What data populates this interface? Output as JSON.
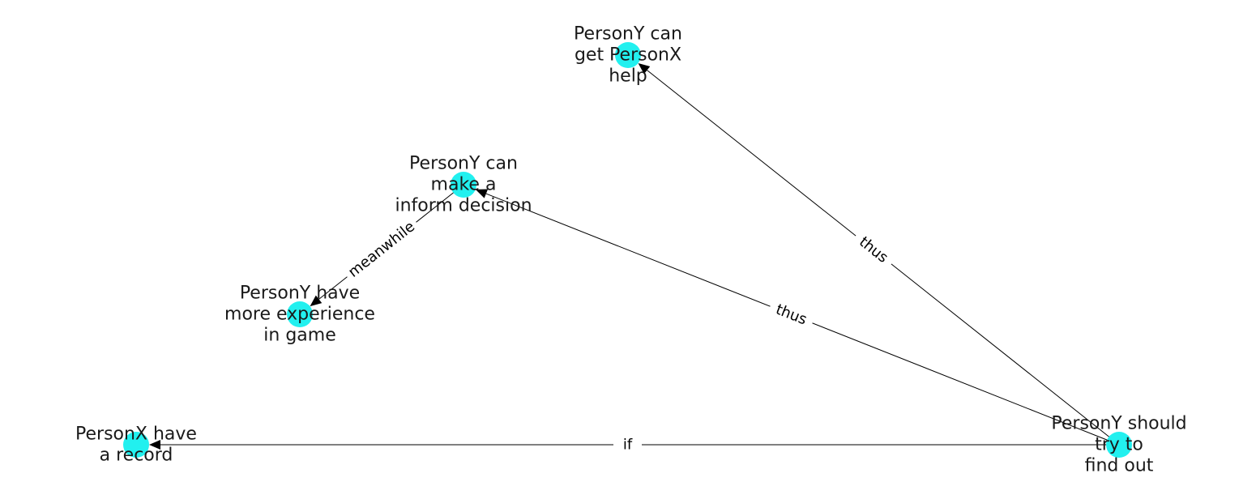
{
  "colors": {
    "node_fill": "#22f0ef",
    "edge": "#000000",
    "label_text": "#1a1a1a"
  },
  "nodes": [
    {
      "id": "n1",
      "lines": [
        "PersonY can",
        "get PersonX",
        "help"
      ]
    },
    {
      "id": "n2",
      "lines": [
        "PersonY can",
        "make a",
        "inform decision"
      ]
    },
    {
      "id": "n3",
      "lines": [
        "PersonY have",
        "more experience",
        "in game"
      ]
    },
    {
      "id": "n4",
      "lines": [
        "PersonX have",
        "a record"
      ]
    },
    {
      "id": "n5",
      "lines": [
        "PersonY should",
        "try to",
        "find out"
      ]
    }
  ],
  "edges": [
    {
      "from": "n5",
      "to": "n1",
      "label": "thus"
    },
    {
      "from": "n5",
      "to": "n2",
      "label": "thus"
    },
    {
      "from": "n2",
      "to": "n3",
      "label": "meanwhile"
    },
    {
      "from": "n5",
      "to": "n4",
      "label": "if"
    }
  ]
}
